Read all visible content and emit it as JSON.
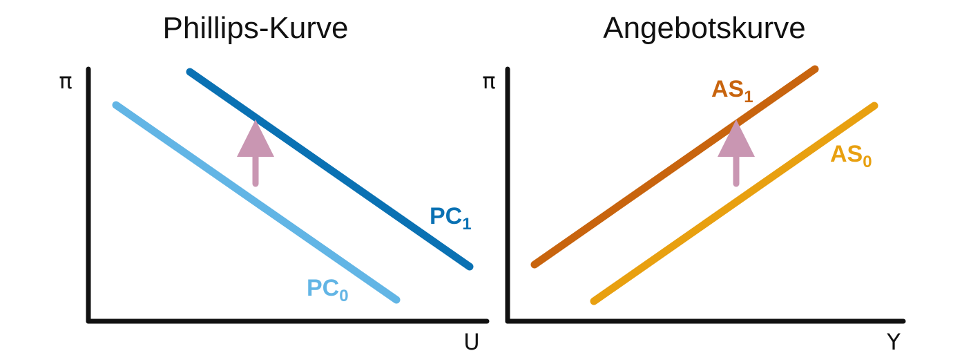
{
  "panels": [
    {
      "title": "Phillips-Kurve",
      "y_axis_label": "π",
      "x_axis_label": "U",
      "curves": [
        {
          "label": "PC",
          "subscript": "1",
          "color": "#0a71b3"
        },
        {
          "label": "PC",
          "subscript": "0",
          "color": "#62b5e5"
        }
      ],
      "arrow": {
        "color": "#c996b2",
        "direction": "up"
      }
    },
    {
      "title": "Angebotskurve",
      "y_axis_label": "π",
      "x_axis_label": "Y",
      "curves": [
        {
          "label": "AS",
          "subscript": "1",
          "color": "#c8640e"
        },
        {
          "label": "AS",
          "subscript": "0",
          "color": "#e8a010"
        }
      ],
      "arrow": {
        "color": "#c996b2",
        "direction": "up"
      }
    }
  ]
}
